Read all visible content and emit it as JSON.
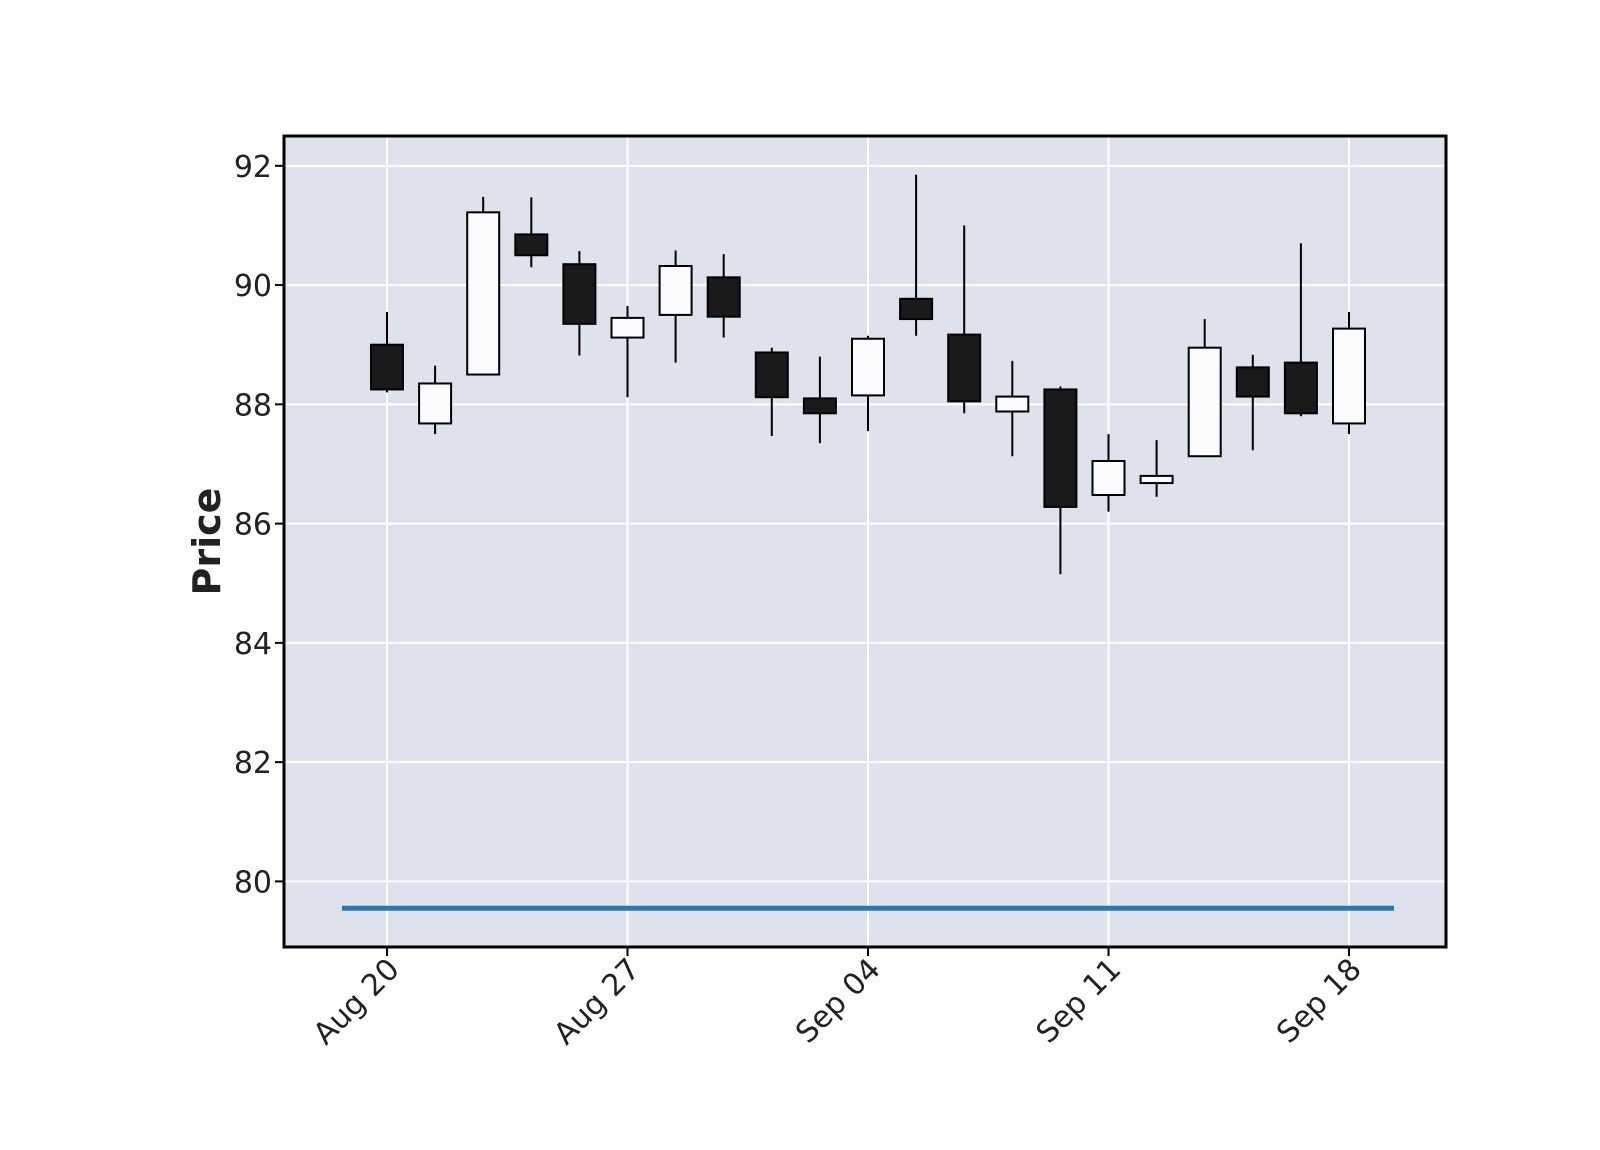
{
  "chart_data": {
    "type": "candlestick",
    "ylabel": "Price",
    "xlabel": "",
    "title": "",
    "ylim": [
      78.9,
      92.5
    ],
    "y_ticks": [
      80,
      82,
      84,
      86,
      88,
      90,
      92
    ],
    "x_tick_labels": [
      "Aug 20",
      "Aug 27",
      "Sep 04",
      "Sep 11",
      "Sep 18"
    ],
    "x_tick_candle_index": [
      0,
      5,
      10,
      15,
      20
    ],
    "grid": true,
    "colors": {
      "background": "#dde2ed",
      "grid": "#ffffff",
      "up_fill": "#fafbfd",
      "down_fill": "#1a1a1a",
      "edge": "#000000",
      "reference_line": "#2a77b5"
    },
    "reference_line": {
      "value": 79.55,
      "label": ""
    },
    "candles": [
      {
        "open": 89.0,
        "high": 89.55,
        "low": 88.2,
        "close": 88.25
      },
      {
        "open": 87.68,
        "high": 88.65,
        "low": 87.5,
        "close": 88.35
      },
      {
        "open": 88.5,
        "high": 91.48,
        "low": 88.5,
        "close": 91.22
      },
      {
        "open": 90.85,
        "high": 91.47,
        "low": 90.3,
        "close": 90.5
      },
      {
        "open": 90.35,
        "high": 90.57,
        "low": 88.82,
        "close": 89.35
      },
      {
        "open": 89.12,
        "high": 89.65,
        "low": 88.12,
        "close": 89.45
      },
      {
        "open": 89.5,
        "high": 90.58,
        "low": 88.7,
        "close": 90.32
      },
      {
        "open": 90.13,
        "high": 90.52,
        "low": 89.12,
        "close": 89.47
      },
      {
        "open": 88.87,
        "high": 88.95,
        "low": 87.47,
        "close": 88.12
      },
      {
        "open": 88.1,
        "high": 88.8,
        "low": 87.35,
        "close": 87.85
      },
      {
        "open": 88.15,
        "high": 89.15,
        "low": 87.55,
        "close": 89.1
      },
      {
        "open": 89.77,
        "high": 91.85,
        "low": 89.15,
        "close": 89.43
      },
      {
        "open": 89.17,
        "high": 91.0,
        "low": 87.85,
        "close": 88.05
      },
      {
        "open": 87.88,
        "high": 88.73,
        "low": 87.13,
        "close": 88.13
      },
      {
        "open": 88.25,
        "high": 88.3,
        "low": 85.15,
        "close": 86.28
      },
      {
        "open": 86.48,
        "high": 87.5,
        "low": 86.2,
        "close": 87.05
      },
      {
        "open": 86.68,
        "high": 87.4,
        "low": 86.45,
        "close": 86.8
      },
      {
        "open": 87.13,
        "high": 89.43,
        "low": 87.13,
        "close": 88.95
      },
      {
        "open": 88.62,
        "high": 88.83,
        "low": 87.23,
        "close": 88.13
      },
      {
        "open": 88.7,
        "high": 90.7,
        "low": 87.8,
        "close": 87.85
      },
      {
        "open": 87.68,
        "high": 89.55,
        "low": 87.5,
        "close": 89.27
      }
    ]
  }
}
